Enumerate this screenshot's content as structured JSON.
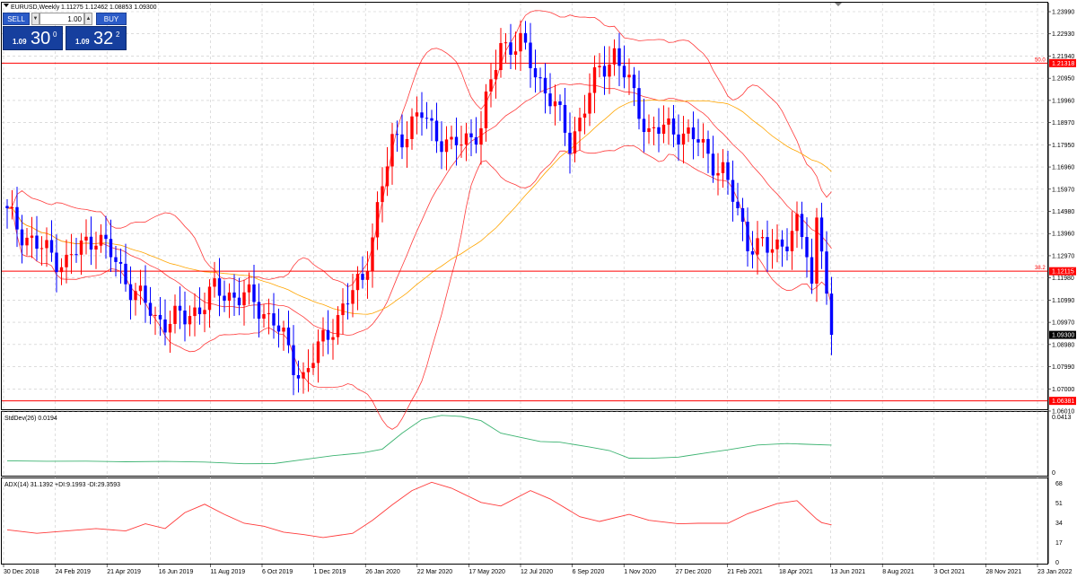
{
  "window": {
    "symbol_label": "EURUSD,Weekly",
    "ohlc_label": "1.11275 1.12462 1.08853 1.09300"
  },
  "trade_panel": {
    "sell_label": "SELL",
    "buy_label": "BUY",
    "lot_value": "1.00",
    "sell_price_small": "1.09",
    "sell_price_big": "30",
    "sell_price_sup": "0",
    "buy_price_small": "1.09",
    "buy_price_big": "32",
    "buy_price_sup": "2"
  },
  "colors": {
    "bull_candle": "#ff0000",
    "bear_candle": "#0000ff",
    "bollinger": "#ff3b3b",
    "ma": "#ffa500",
    "stddev_line": "#3cb371",
    "adx_line": "#ff3b3b",
    "level_line": "#ff0000",
    "grid": "#c8c8c8",
    "current_price_bg": "#000000",
    "level_label_bg": "#ff0000"
  },
  "chart_data": [
    {
      "type": "candlestick",
      "pane": "main",
      "price_range": [
        1.0601,
        1.2399
      ],
      "grid": true,
      "y_ticks": [
        "1.23990",
        "1.22930",
        "1.21940",
        "1.20950",
        "1.19960",
        "1.18970",
        "1.17950",
        "1.16960",
        "1.15970",
        "1.14980",
        "1.13960",
        "1.12970",
        "1.11980",
        "1.10990",
        "1.09970",
        "1.08980",
        "1.07990",
        "1.07000",
        "1.06010"
      ],
      "x_ticks": [
        "30 Dec 2018",
        "24 Feb 2019",
        "21 Apr 2019",
        "16 Jun 2019",
        "11 Aug 2019",
        "6 Oct 2019",
        "1 Dec 2019",
        "26 Jan 2020",
        "22 Mar 2020",
        "17 May 2020",
        "12 Jul 2020",
        "6 Sep 2020",
        "1 Nov 2020",
        "27 Dec 2020",
        "21 Feb 2021",
        "18 Apr 2021",
        "13 Jun 2021",
        "8 Aug 2021",
        "3 Oct 2021",
        "28 Nov 2021",
        "23 Jan 2022"
      ],
      "current_price": "1.09300",
      "levels": [
        {
          "price": "1.21318",
          "label": "50.0"
        },
        {
          "price": "1.12115",
          "label": "38.2"
        },
        {
          "price": "1.06381",
          "label": ""
        }
      ],
      "candle_anchors": [
        {
          "week": 0,
          "close": 1.146
        },
        {
          "week": 6,
          "close": 1.132
        },
        {
          "week": 12,
          "close": 1.125
        },
        {
          "week": 18,
          "close": 1.138
        },
        {
          "week": 24,
          "close": 1.118
        },
        {
          "week": 30,
          "close": 1.1
        },
        {
          "week": 36,
          "close": 1.1
        },
        {
          "week": 42,
          "close": 1.112
        },
        {
          "week": 48,
          "close": 1.11
        },
        {
          "week": 54,
          "close": 1.1
        },
        {
          "week": 58,
          "close": 1.08
        },
        {
          "week": 60,
          "close": 1.075
        },
        {
          "week": 63,
          "close": 1.086
        },
        {
          "week": 66,
          "close": 1.098
        },
        {
          "week": 72,
          "close": 1.118
        },
        {
          "week": 78,
          "close": 1.178
        },
        {
          "week": 84,
          "close": 1.19
        },
        {
          "week": 90,
          "close": 1.175
        },
        {
          "week": 96,
          "close": 1.185
        },
        {
          "week": 100,
          "close": 1.222
        },
        {
          "week": 104,
          "close": 1.221
        },
        {
          "week": 110,
          "close": 1.198
        },
        {
          "week": 114,
          "close": 1.178
        },
        {
          "week": 120,
          "close": 1.21
        },
        {
          "week": 123,
          "close": 1.218
        },
        {
          "week": 127,
          "close": 1.198
        },
        {
          "week": 130,
          "close": 1.183
        },
        {
          "week": 136,
          "close": 1.184
        },
        {
          "week": 140,
          "close": 1.178
        },
        {
          "week": 145,
          "close": 1.165
        },
        {
          "week": 150,
          "close": 1.135
        },
        {
          "week": 154,
          "close": 1.13
        },
        {
          "week": 158,
          "close": 1.136
        },
        {
          "week": 160,
          "close": 1.14
        },
        {
          "week": 162,
          "close": 1.13
        },
        {
          "week": 163,
          "close": 1.115
        },
        {
          "week": 164,
          "close": 1.145
        },
        {
          "week": 165,
          "close": 1.135
        },
        {
          "week": 166,
          "close": 1.1128
        },
        {
          "week": 167,
          "close": 1.093
        }
      ]
    },
    {
      "type": "line",
      "pane": "stddev",
      "title": "StdDev(26) 0.0194",
      "series": [
        {
          "name": "StdDev(26)",
          "points": [
            [
              0,
              0.0081
            ],
            [
              8,
              0.0078
            ],
            [
              16,
              0.0079
            ],
            [
              24,
              0.0074
            ],
            [
              32,
              0.0077
            ],
            [
              40,
              0.0072
            ],
            [
              48,
              0.006
            ],
            [
              54,
              0.0061
            ],
            [
              60,
              0.009
            ],
            [
              66,
              0.0118
            ],
            [
              72,
              0.0138
            ],
            [
              76,
              0.0165
            ],
            [
              80,
              0.028
            ],
            [
              84,
              0.0378
            ],
            [
              88,
              0.0408
            ],
            [
              92,
              0.04
            ],
            [
              96,
              0.037
            ],
            [
              100,
              0.028
            ],
            [
              104,
              0.025
            ],
            [
              108,
              0.022
            ],
            [
              112,
              0.0215
            ],
            [
              118,
              0.018
            ],
            [
              122,
              0.0155
            ],
            [
              126,
              0.01
            ],
            [
              130,
              0.0099
            ],
            [
              136,
              0.0108
            ],
            [
              142,
              0.014
            ],
            [
              146,
              0.016
            ],
            [
              152,
              0.0195
            ],
            [
              158,
              0.0205
            ],
            [
              162,
              0.02
            ],
            [
              167,
              0.0194
            ]
          ]
        }
      ],
      "y_ticks": [
        "0.0413",
        "0"
      ],
      "ylim": [
        0,
        0.0413
      ]
    },
    {
      "type": "line",
      "pane": "adx",
      "title": "ADX(14) 31.1392 +DI:9.1993 -DI:29.3593",
      "series": [
        {
          "name": "ADX(14)",
          "points": [
            [
              0,
              27.0
            ],
            [
              6,
              24.0
            ],
            [
              12,
              26.0
            ],
            [
              18,
              28.0
            ],
            [
              24,
              26.0
            ],
            [
              28,
              32.0
            ],
            [
              32,
              28.0
            ],
            [
              36,
              41.5
            ],
            [
              40,
              48.5
            ],
            [
              44,
              40.0
            ],
            [
              48,
              32.5
            ],
            [
              52,
              30.0
            ],
            [
              56,
              25.0
            ],
            [
              60,
              23.0
            ],
            [
              64,
              20.5
            ],
            [
              70,
              24.0
            ],
            [
              74,
              35.0
            ],
            [
              78,
              48.0
            ],
            [
              82,
              60.0
            ],
            [
              86,
              67.0
            ],
            [
              90,
              62.0
            ],
            [
              96,
              50.0
            ],
            [
              100,
              47.0
            ],
            [
              106,
              60.0
            ],
            [
              110,
              53.0
            ],
            [
              116,
              38.0
            ],
            [
              120,
              34.0
            ],
            [
              126,
              40.0
            ],
            [
              130,
              35.0
            ],
            [
              136,
              32.0
            ],
            [
              140,
              32.5
            ],
            [
              146,
              32.5
            ],
            [
              150,
              40.5
            ],
            [
              156,
              49.0
            ],
            [
              160,
              51.5
            ],
            [
              164,
              36.0
            ],
            [
              165,
              33.0
            ],
            [
              167,
              31.1392
            ]
          ]
        }
      ],
      "y_ticks": [
        "68",
        "51",
        "34",
        "17",
        "0"
      ],
      "ylim": [
        0,
        68
      ]
    }
  ]
}
